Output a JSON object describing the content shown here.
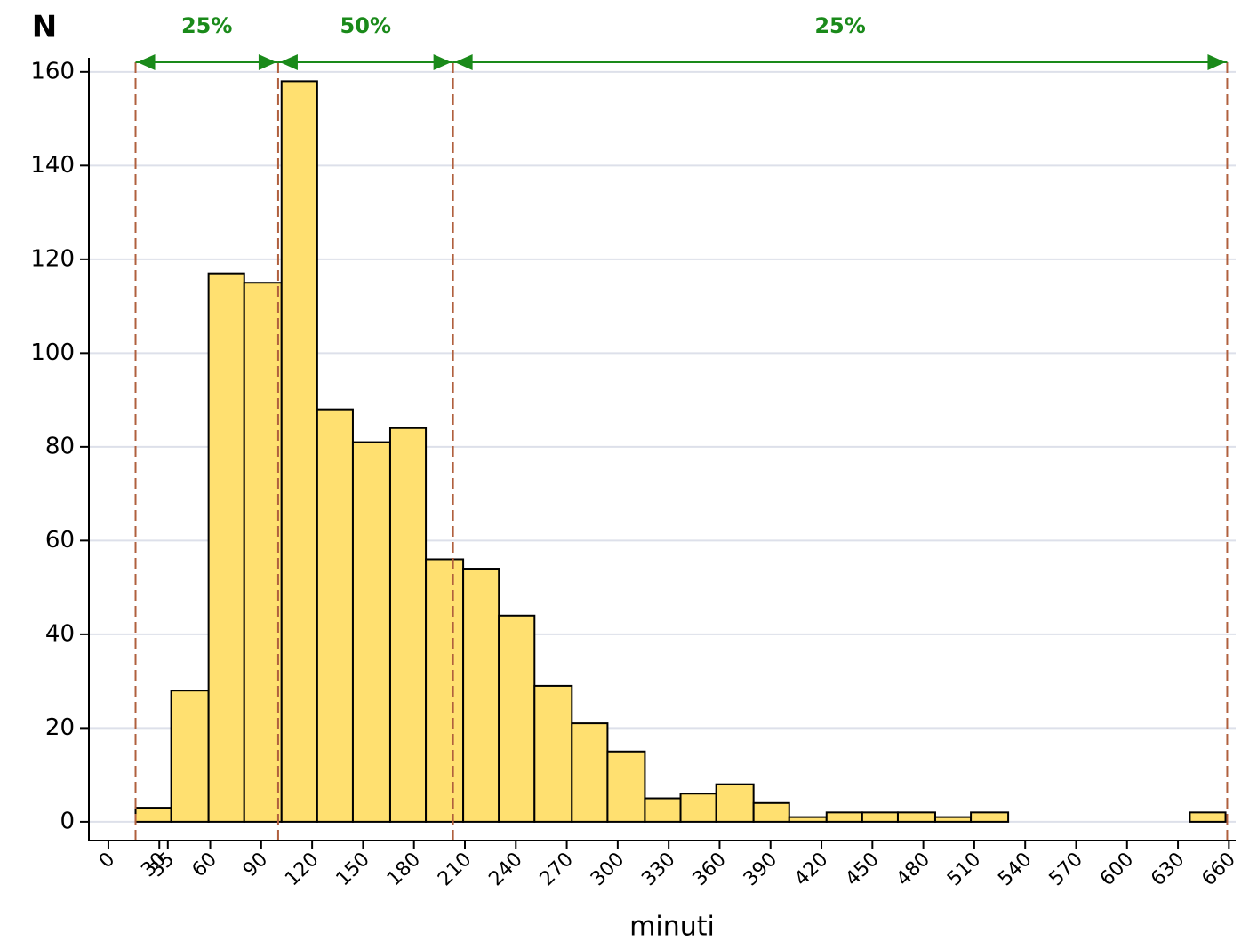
{
  "chart_data": {
    "type": "histogram",
    "y_label": "N",
    "x_label": "minuti",
    "bins": [
      16,
      37,
      59,
      80,
      102,
      123,
      144,
      166,
      187,
      209,
      230,
      251,
      273,
      294,
      316,
      337,
      358,
      380,
      401,
      423,
      444,
      465,
      487,
      508,
      530,
      551,
      572,
      594,
      615,
      637,
      658
    ],
    "values": [
      3,
      28,
      117,
      115,
      158,
      88,
      81,
      84,
      56,
      54,
      44,
      29,
      21,
      15,
      5,
      6,
      8,
      4,
      1,
      2,
      2,
      2,
      1,
      2,
      0,
      0,
      0,
      0,
      0,
      2
    ],
    "color": "#ffe070",
    "xlim": [
      -11.5,
      664
    ],
    "xticks": [
      0,
      30,
      35,
      60,
      90,
      120,
      150,
      180,
      210,
      240,
      270,
      300,
      330,
      360,
      390,
      420,
      450,
      480,
      510,
      540,
      570,
      600,
      630,
      660
    ],
    "ylim": [
      -4,
      163
    ],
    "yticks": [
      0,
      20,
      40,
      60,
      80,
      100,
      120,
      140,
      160
    ],
    "grid": true,
    "quartile_lines": [
      16,
      100,
      203,
      659
    ],
    "annotations": [
      "25%",
      "50%",
      "25%"
    ]
  }
}
